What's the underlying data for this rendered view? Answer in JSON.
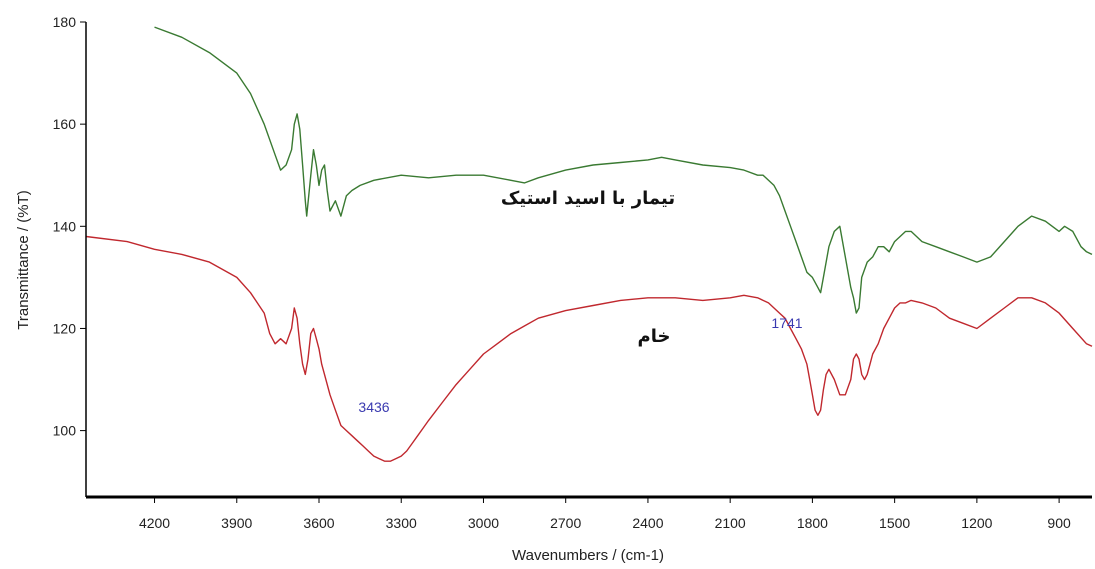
{
  "chart_data": {
    "type": "line",
    "xlabel": "Wavenumbers / (cm-1)",
    "ylabel": "Transmittance / (%T)",
    "xlim": [
      4450,
      780
    ],
    "ylim": [
      87,
      180
    ],
    "x_reversed": true,
    "x_ticks": [
      4200,
      3900,
      3600,
      3300,
      3000,
      2700,
      2400,
      2100,
      1800,
      1500,
      1200,
      900
    ],
    "y_ticks": [
      100,
      120,
      140,
      160,
      180
    ],
    "grid": false,
    "series": [
      {
        "name": "تیمار با اسید استیک",
        "color": "#3a7a32",
        "x": [
          4200,
          4100,
          4000,
          3900,
          3850,
          3800,
          3760,
          3740,
          3720,
          3700,
          3690,
          3680,
          3670,
          3660,
          3650,
          3645,
          3630,
          3620,
          3610,
          3600,
          3590,
          3580,
          3570,
          3560,
          3540,
          3520,
          3500,
          3480,
          3450,
          3400,
          3300,
          3200,
          3100,
          3000,
          2900,
          2850,
          2800,
          2700,
          2600,
          2500,
          2400,
          2350,
          2300,
          2200,
          2100,
          2050,
          2000,
          1980,
          1960,
          1940,
          1920,
          1900,
          1880,
          1860,
          1840,
          1820,
          1800,
          1780,
          1770,
          1760,
          1740,
          1720,
          1700,
          1680,
          1660,
          1650,
          1640,
          1630,
          1620,
          1600,
          1580,
          1560,
          1540,
          1520,
          1500,
          1480,
          1460,
          1440,
          1400,
          1350,
          1300,
          1250,
          1200,
          1150,
          1100,
          1050,
          1000,
          950,
          900,
          880,
          850,
          820,
          800,
          780
        ],
        "y": [
          179,
          177,
          174,
          170,
          166,
          160,
          154,
          151,
          152,
          155,
          160,
          162,
          159,
          152,
          145,
          142,
          150,
          155,
          152,
          148,
          151,
          152,
          147,
          143,
          145,
          142,
          146,
          147,
          148,
          149,
          150,
          149.5,
          150,
          150,
          149,
          148.5,
          149.5,
          151,
          152,
          152.5,
          153,
          153.5,
          153,
          152,
          151.5,
          151,
          150,
          150,
          149,
          148,
          146,
          143,
          140,
          137,
          134,
          131,
          130,
          128,
          127,
          130,
          136,
          139,
          140,
          134,
          128,
          126,
          123,
          124,
          130,
          133,
          134,
          136,
          136,
          135,
          137,
          138,
          139,
          139,
          137,
          136,
          135,
          134,
          133,
          134,
          137,
          140,
          142,
          141,
          139,
          140,
          139,
          136,
          135,
          134.5
        ]
      },
      {
        "name": "خام",
        "color": "#c0282e",
        "x": [
          4450,
          4300,
          4200,
          4100,
          4000,
          3900,
          3850,
          3800,
          3780,
          3760,
          3740,
          3720,
          3700,
          3690,
          3680,
          3670,
          3660,
          3650,
          3640,
          3630,
          3620,
          3610,
          3600,
          3590,
          3580,
          3560,
          3540,
          3520,
          3500,
          3480,
          3460,
          3440,
          3420,
          3400,
          3380,
          3360,
          3340,
          3320,
          3300,
          3280,
          3260,
          3240,
          3220,
          3200,
          3150,
          3100,
          3050,
          3000,
          2950,
          2900,
          2850,
          2800,
          2700,
          2600,
          2500,
          2400,
          2300,
          2200,
          2100,
          2050,
          2000,
          1960,
          1940,
          1920,
          1900,
          1880,
          1860,
          1840,
          1820,
          1810,
          1800,
          1790,
          1780,
          1770,
          1760,
          1750,
          1740,
          1720,
          1700,
          1680,
          1660,
          1650,
          1640,
          1630,
          1620,
          1610,
          1600,
          1590,
          1580,
          1560,
          1540,
          1520,
          1500,
          1480,
          1460,
          1440,
          1400,
          1350,
          1300,
          1250,
          1200,
          1150,
          1100,
          1050,
          1000,
          950,
          900,
          850,
          800,
          780
        ],
        "y": [
          138,
          137,
          135.5,
          134.5,
          133,
          130,
          127,
          123,
          119,
          117,
          118,
          117,
          120,
          124,
          122,
          117,
          113,
          111,
          114,
          119,
          120,
          118,
          116,
          113,
          111,
          107,
          104,
          101,
          100,
          99,
          98,
          97,
          96,
          95,
          94.5,
          94,
          94,
          94.5,
          95,
          96,
          97.5,
          99,
          100.5,
          102,
          105.5,
          109,
          112,
          115,
          117,
          119,
          120.5,
          122,
          123.5,
          124.5,
          125.5,
          126,
          126,
          125.5,
          126,
          126.5,
          126,
          125,
          124,
          123,
          122,
          120,
          118,
          116,
          113,
          110,
          107,
          104,
          103,
          104,
          108,
          111,
          112,
          110,
          107,
          107,
          110,
          114,
          115,
          114,
          111,
          110,
          111,
          113,
          115,
          117,
          120,
          122,
          124,
          125,
          125,
          125.5,
          125,
          124,
          122,
          121,
          120,
          122,
          124,
          126,
          126,
          125,
          123,
          120,
          117,
          116.5
        ]
      }
    ],
    "annotations": {
      "peak_3436": "3436",
      "peak_1741": "1741"
    }
  }
}
